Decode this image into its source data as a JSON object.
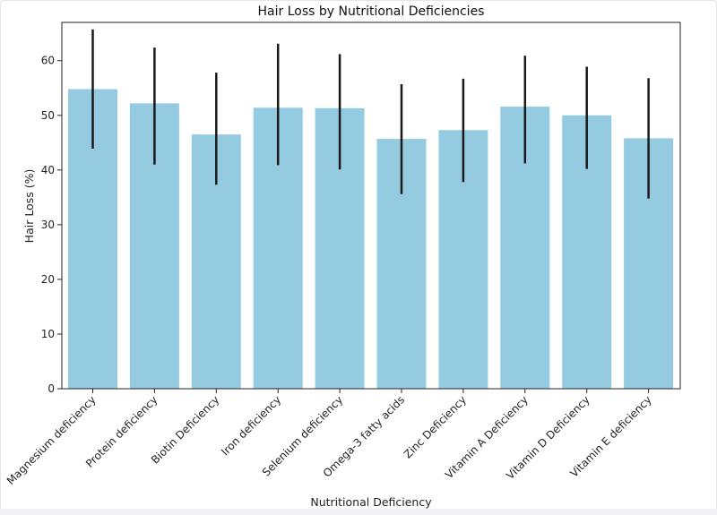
{
  "chart_data": {
    "type": "bar",
    "title": "Hair Loss by Nutritional Deficiencies",
    "xlabel": "Nutritional Deficiency",
    "ylabel": "Hair Loss (%)",
    "ylim": [
      0,
      67
    ],
    "yticks": [
      0,
      10,
      20,
      30,
      40,
      50,
      60
    ],
    "categories": [
      "Magnesium deficiency",
      "Protein deficiency",
      "Biotin Deficiency",
      "Iron deficiency",
      "Selenium deficiency",
      "Omega-3 fatty acids",
      "Zinc Deficiency",
      "Vitamin A Deficiency",
      "Vitamin D Deficiency",
      "Vitamin E deficiency"
    ],
    "values": [
      54.8,
      52.2,
      46.5,
      51.4,
      51.3,
      45.7,
      47.3,
      51.6,
      50.0,
      45.8
    ],
    "error_low": [
      43.9,
      41.0,
      37.3,
      40.9,
      40.1,
      35.6,
      37.8,
      41.2,
      40.2,
      34.8
    ],
    "error_high": [
      65.7,
      62.4,
      57.8,
      63.1,
      61.2,
      55.7,
      56.7,
      60.9,
      58.9,
      56.8
    ],
    "bar_color": "#95cbe0",
    "error_color": "#1a1a1a",
    "grid": false
  }
}
